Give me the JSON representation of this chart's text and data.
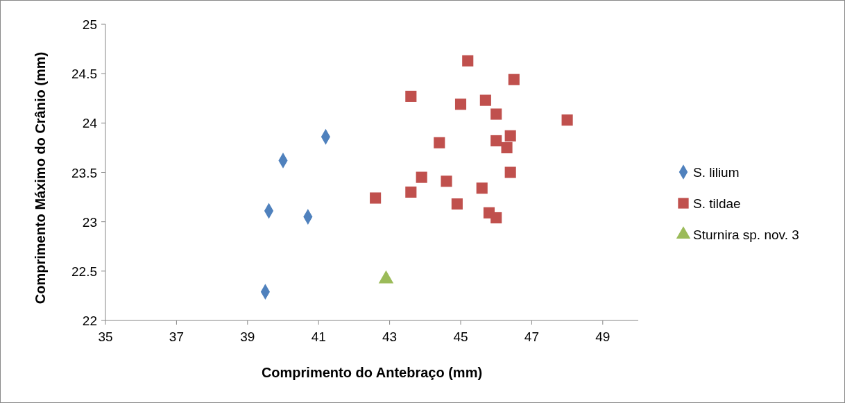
{
  "chart_data": {
    "type": "scatter",
    "xlabel": "Comprimento do Antebraço (mm)",
    "ylabel": "Comprimento Máximo do Crânio (mm)",
    "xlim": [
      35,
      50
    ],
    "xticks": [
      35,
      37,
      39,
      41,
      43,
      45,
      47,
      49
    ],
    "ylim": [
      22,
      25
    ],
    "yticks": [
      22,
      22.5,
      23,
      23.5,
      24,
      24.5,
      25
    ],
    "grid": false,
    "legend": "right",
    "series": [
      {
        "name": "S. lilium",
        "color": "#4f81bd",
        "marker": "diamond",
        "x": [
          39.5,
          39.6,
          40.0,
          40.7,
          41.2
        ],
        "values": [
          22.29,
          23.11,
          23.62,
          23.05,
          23.86
        ]
      },
      {
        "name": "S. tildae",
        "color": "#c0504d",
        "marker": "square",
        "x": [
          42.6,
          43.6,
          43.6,
          43.9,
          44.4,
          44.6,
          44.9,
          45.0,
          45.2,
          45.6,
          45.7,
          45.8,
          46.0,
          46.0,
          46.0,
          46.3,
          46.4,
          46.4,
          46.5,
          48.0
        ],
        "values": [
          23.24,
          23.3,
          24.27,
          23.45,
          23.8,
          23.41,
          23.18,
          24.19,
          24.63,
          23.34,
          24.23,
          23.09,
          23.04,
          24.09,
          23.82,
          23.75,
          23.87,
          23.5,
          24.44,
          24.03
        ]
      },
      {
        "name": "Sturnira sp. nov. 3",
        "color": "#9bbb59",
        "marker": "triangle",
        "x": [
          42.9
        ],
        "values": [
          22.42
        ]
      }
    ]
  }
}
